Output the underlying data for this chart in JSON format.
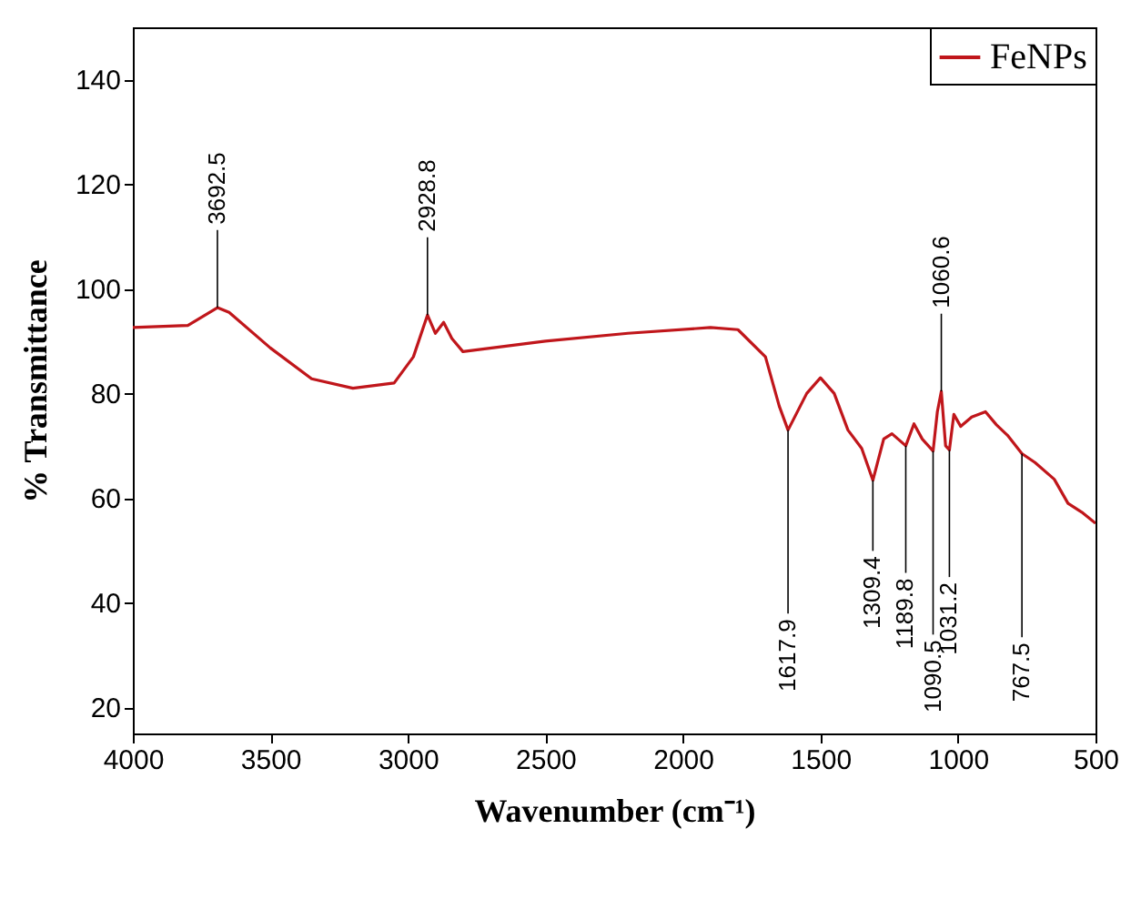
{
  "chart_data": {
    "type": "line",
    "xlabel": "Wavenumber (cm⁻¹)",
    "ylabel": "% Transmittance",
    "x": [
      4000,
      3800,
      3692.5,
      3650,
      3500,
      3350,
      3200,
      3050,
      2980,
      2928.8,
      2900,
      2870,
      2840,
      2800,
      2500,
      2200,
      1900,
      1800,
      1700,
      1650,
      1617.9,
      1550,
      1500,
      1450,
      1400,
      1350,
      1309.4,
      1270,
      1240,
      1189.8,
      1160,
      1130,
      1090.5,
      1075,
      1060.6,
      1045,
      1031.2,
      1015,
      990,
      950,
      900,
      860,
      820,
      767.5,
      720,
      650,
      600,
      550,
      500
    ],
    "series": [
      {
        "name": "FeNPs",
        "color": "#c0161b",
        "values": [
          92.6,
          93,
          96.4,
          95.5,
          88.7,
          82.8,
          81,
          82,
          87,
          95,
          91.5,
          93.6,
          90.5,
          88,
          90,
          91.5,
          92.6,
          92.2,
          87,
          77.6,
          73,
          80,
          83,
          80,
          73,
          69.5,
          63.4,
          71.3,
          72.3,
          70,
          74.2,
          71.3,
          69,
          76.5,
          80.4,
          70,
          69.2,
          76,
          73.7,
          75.5,
          76.5,
          74,
          72,
          68.5,
          66.8,
          63.6,
          59,
          57.3,
          55.2
        ]
      }
    ],
    "xlim": [
      4000,
      500
    ],
    "xticks": [
      4000,
      3500,
      3000,
      2500,
      2000,
      1500,
      1000,
      500
    ],
    "ylim": [
      15,
      150
    ],
    "yticks": [
      20,
      40,
      60,
      80,
      100,
      120,
      140
    ],
    "annotations": [
      {
        "text": "3692.5",
        "x": 3692.5,
        "y": 96.4
      },
      {
        "text": "2928.8",
        "x": 2928.8,
        "y": 95
      },
      {
        "text": "1617.9",
        "x": 1617.9,
        "y": 73
      },
      {
        "text": "1309.4",
        "x": 1309.4,
        "y": 63.4
      },
      {
        "text": "1189.8",
        "x": 1189.8,
        "y": 70
      },
      {
        "text": "1090.5",
        "x": 1090.5,
        "y": 69
      },
      {
        "text": "1060.6",
        "x": 1060.6,
        "y": 80.4
      },
      {
        "text": "1031.2",
        "x": 1031.2,
        "y": 69.2
      },
      {
        "text": "767.5",
        "x": 767.5,
        "y": 68.5
      }
    ],
    "legend": "top right",
    "grid": false,
    "line_style": "solid"
  }
}
